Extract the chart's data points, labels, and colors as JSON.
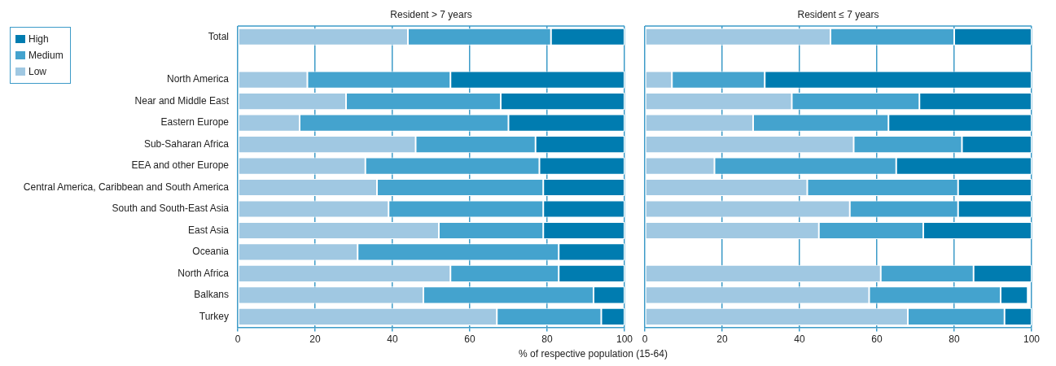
{
  "chart_data": [
    {
      "type": "bar",
      "orientation": "horizontal",
      "stacked": true,
      "title": "Resident > 7 years",
      "xlabel": "% of respective population (15-64)",
      "categories": [
        "Total",
        null,
        "North America",
        "Near and Middle East",
        "Eastern Europe",
        "Sub-Saharan Africa",
        "EEA and other Europe",
        "Central America, Caribbean and South America",
        "South and South-East Asia",
        "East Asia",
        "Oceania",
        "North Africa",
        "Balkans",
        "Turkey"
      ],
      "series": [
        {
          "name": "Low",
          "color": "#a0c8e2",
          "values": [
            44,
            null,
            18,
            28,
            16,
            46,
            33,
            36,
            39,
            52,
            31,
            55,
            48,
            67
          ]
        },
        {
          "name": "Medium",
          "color": "#44a3ce",
          "values": [
            37,
            null,
            37,
            40,
            54,
            31,
            45,
            43,
            40,
            27,
            52,
            28,
            44,
            27
          ]
        },
        {
          "name": "High",
          "color": "#007cb0",
          "values": [
            19,
            null,
            45,
            32,
            30,
            23,
            22,
            21,
            21,
            21,
            17,
            17,
            8,
            6
          ]
        }
      ],
      "xlim": [
        0,
        100
      ],
      "xticks": [
        0,
        20,
        40,
        60,
        80,
        100
      ],
      "grid": "x",
      "legend": "top left"
    },
    {
      "type": "bar",
      "orientation": "horizontal",
      "stacked": true,
      "title": "Resident ≤ 7 years",
      "categories": [
        null,
        null,
        null,
        null,
        null,
        null,
        null,
        null,
        null,
        null,
        null,
        null,
        null,
        null
      ],
      "series": [
        {
          "color": "#a0c8e2",
          "values": [
            48,
            null,
            7,
            38,
            28,
            54,
            18,
            42,
            53,
            45,
            null,
            61,
            58,
            68
          ]
        },
        {
          "color": "#44a3ce",
          "values": [
            32,
            null,
            24,
            33,
            35,
            28,
            47,
            39,
            28,
            27,
            null,
            24,
            34,
            25
          ]
        },
        {
          "color": "#007cb0",
          "values": [
            20,
            null,
            69,
            29,
            37,
            18,
            35,
            19,
            19,
            28,
            null,
            15,
            7,
            7
          ]
        }
      ],
      "xlim": [
        0,
        100
      ],
      "xticks": [
        0,
        20,
        40,
        60,
        80,
        100
      ],
      "grid": "x"
    }
  ]
}
